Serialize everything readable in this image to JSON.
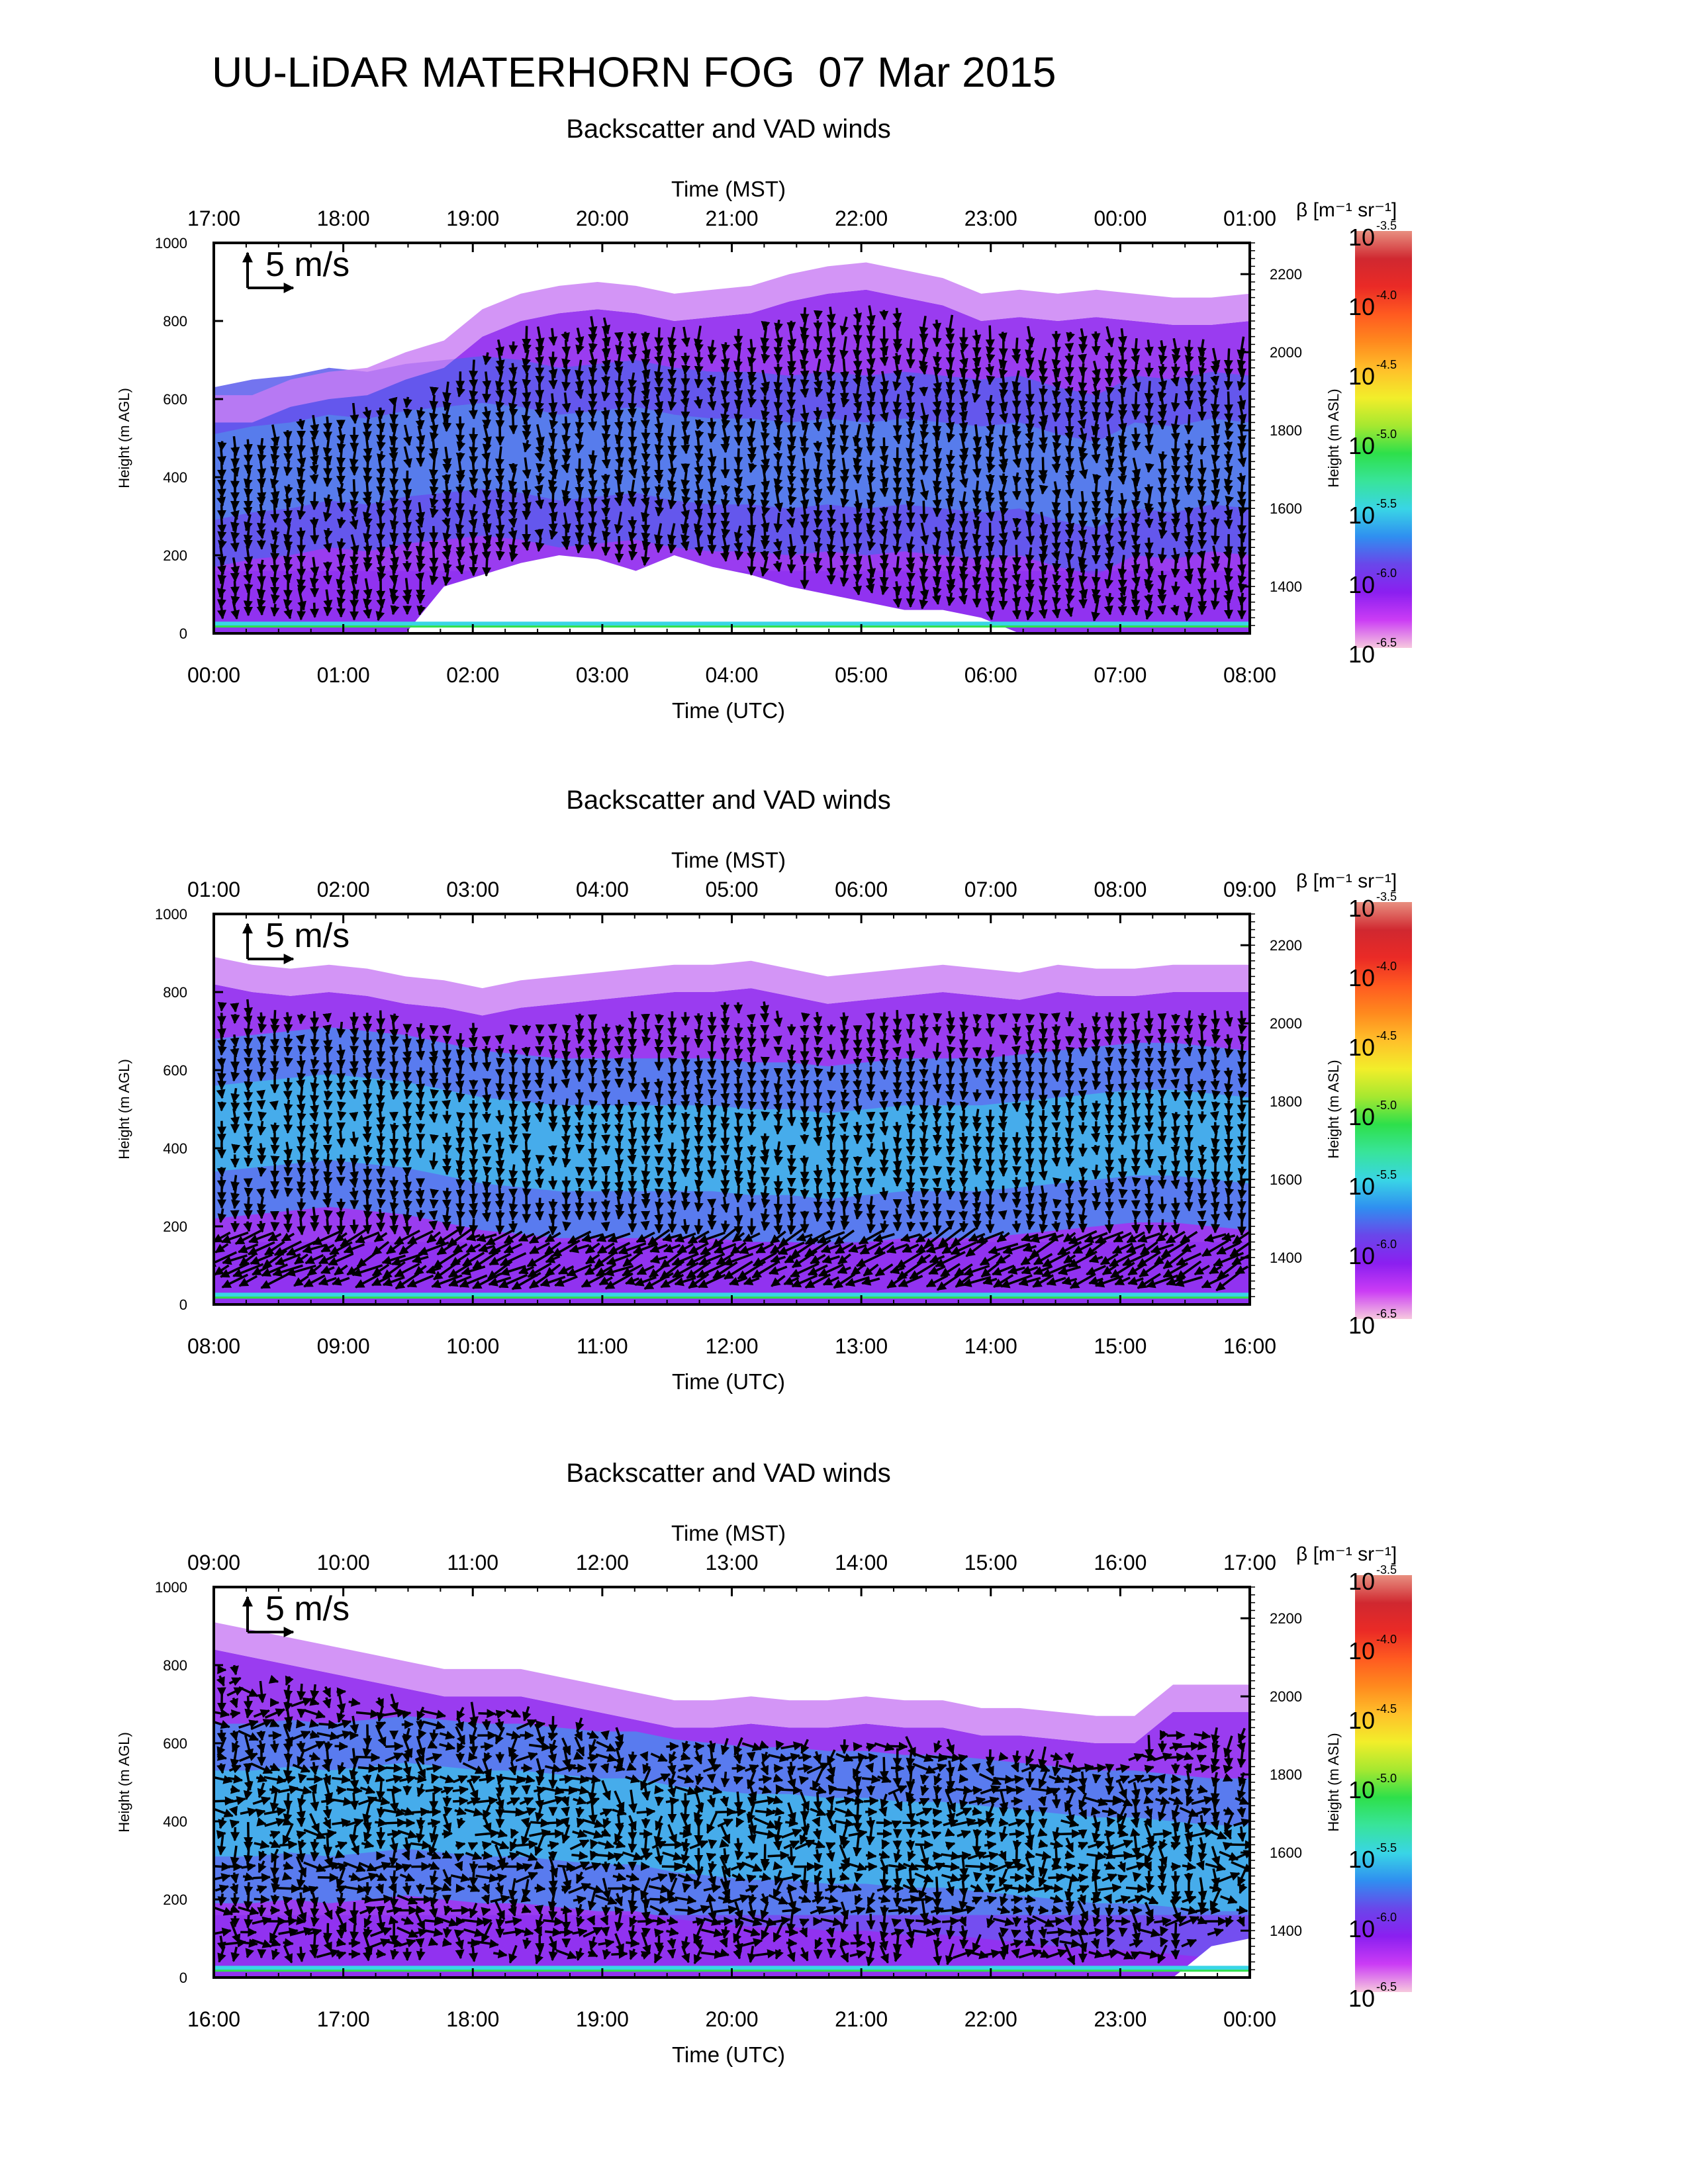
{
  "page": {
    "title": "UU-LiDAR MATERHORN FOG  07 Mar 2015"
  },
  "scale_arrow_label": "5 m/s",
  "colorbar": {
    "title": "β [m⁻¹ sr⁻¹]",
    "ticks": [
      {
        "base": "10",
        "exp": "-3.5",
        "value": -3.5
      },
      {
        "base": "10",
        "exp": "-4.0",
        "value": -4.0
      },
      {
        "base": "10",
        "exp": "-4.5",
        "value": -4.5
      },
      {
        "base": "10",
        "exp": "-5.0",
        "value": -5.0
      },
      {
        "base": "10",
        "exp": "-5.5",
        "value": -5.5
      },
      {
        "base": "10",
        "exp": "-6.0",
        "value": -6.0
      },
      {
        "base": "10",
        "exp": "-6.5",
        "value": -6.5
      }
    ],
    "colors": [
      "#f6c9de",
      "#cb3cf5",
      "#8b1ff0",
      "#6a46ea",
      "#2f8ff0",
      "#39d5e6",
      "#38e49a",
      "#2ee04a",
      "#a6e830",
      "#f2ee2a",
      "#ffc02a",
      "#ff8a1e",
      "#ff5a20",
      "#ea2a26",
      "#d02830",
      "#e88f80"
    ]
  },
  "chart_data": [
    {
      "type": "heatmap",
      "title": "Backscatter and VAD winds",
      "xlabel_bottom": "Time (UTC)",
      "xlabel_top": "Time (MST)",
      "ylabel_left": "Height (m AGL)",
      "ylabel_right": "Height (m ASL)",
      "x_ticks_bottom": [
        "00:00",
        "01:00",
        "02:00",
        "03:00",
        "04:00",
        "05:00",
        "06:00",
        "07:00",
        "08:00"
      ],
      "x_ticks_top": [
        "17:00",
        "18:00",
        "19:00",
        "20:00",
        "21:00",
        "22:00",
        "23:00",
        "00:00",
        "01:00"
      ],
      "y_ticks_left": [
        0,
        200,
        400,
        600,
        800,
        1000
      ],
      "y_ticks_right": [
        1400,
        1600,
        1800,
        2000,
        2200
      ],
      "ylim": [
        0,
        1000
      ],
      "bl_top": [
        540,
        540,
        580,
        600,
        610,
        650,
        680,
        760,
        800,
        820,
        830,
        820,
        800,
        810,
        820,
        850,
        870,
        880,
        860,
        840,
        800,
        810,
        800,
        810,
        800,
        790,
        790,
        800
      ],
      "layer": [
        400,
        420,
        430,
        450,
        440,
        460,
        470,
        480,
        470,
        450,
        460,
        470,
        450,
        440,
        440,
        430,
        440,
        430,
        440,
        430,
        420,
        430,
        400,
        380,
        430,
        420,
        440,
        430
      ],
      "clear_bottom": [
        0,
        0,
        0,
        0,
        0,
        0,
        120,
        150,
        180,
        200,
        190,
        160,
        200,
        170,
        150,
        120,
        100,
        80,
        60,
        60,
        40,
        0,
        0,
        0,
        0,
        0,
        0,
        0
      ]
    },
    {
      "type": "heatmap",
      "title": "Backscatter and VAD winds",
      "xlabel_bottom": "Time (UTC)",
      "xlabel_top": "Time (MST)",
      "ylabel_left": "Height (m AGL)",
      "ylabel_right": "Height (m ASL)",
      "x_ticks_bottom": [
        "08:00",
        "09:00",
        "10:00",
        "11:00",
        "12:00",
        "13:00",
        "14:00",
        "15:00",
        "16:00"
      ],
      "x_ticks_top": [
        "01:00",
        "02:00",
        "03:00",
        "04:00",
        "05:00",
        "06:00",
        "07:00",
        "08:00",
        "09:00"
      ],
      "y_ticks_left": [
        0,
        200,
        400,
        600,
        800,
        1000
      ],
      "y_ticks_right": [
        1400,
        1600,
        1800,
        2000,
        2200
      ],
      "ylim": [
        0,
        1000
      ],
      "bl_top": [
        820,
        800,
        790,
        800,
        790,
        770,
        760,
        740,
        760,
        770,
        780,
        790,
        800,
        800,
        810,
        790,
        770,
        780,
        790,
        800,
        790,
        780,
        800,
        790,
        790,
        800,
        800,
        800
      ],
      "layer": [
        450,
        460,
        470,
        480,
        470,
        460,
        440,
        420,
        410,
        400,
        400,
        400,
        400,
        400,
        390,
        390,
        380,
        390,
        400,
        400,
        400,
        410,
        420,
        430,
        440,
        440,
        430,
        420
      ],
      "clear_bottom": [
        0,
        0,
        0,
        0,
        0,
        0,
        0,
        0,
        0,
        0,
        0,
        0,
        0,
        0,
        0,
        0,
        0,
        0,
        0,
        0,
        0,
        0,
        0,
        0,
        0,
        0,
        0,
        0
      ]
    },
    {
      "type": "heatmap",
      "title": "Backscatter and VAD winds",
      "xlabel_bottom": "Time (UTC)",
      "xlabel_top": "Time (MST)",
      "ylabel_left": "Height (m AGL)",
      "ylabel_right": "Height (m ASL)",
      "x_ticks_bottom": [
        "16:00",
        "17:00",
        "18:00",
        "19:00",
        "20:00",
        "21:00",
        "22:00",
        "23:00",
        "00:00"
      ],
      "x_ticks_top": [
        "09:00",
        "10:00",
        "11:00",
        "12:00",
        "13:00",
        "14:00",
        "15:00",
        "16:00",
        "17:00"
      ],
      "y_ticks_left": [
        0,
        200,
        400,
        600,
        800,
        1000
      ],
      "y_ticks_right": [
        1400,
        1600,
        1800,
        2000,
        2200
      ],
      "ylim": [
        0,
        1000
      ],
      "bl_top": [
        840,
        820,
        800,
        780,
        760,
        740,
        720,
        720,
        720,
        700,
        680,
        660,
        640,
        640,
        650,
        640,
        640,
        650,
        640,
        640,
        620,
        620,
        610,
        600,
        600,
        680,
        680,
        680
      ],
      "layer": [
        420,
        420,
        430,
        420,
        430,
        440,
        430,
        420,
        420,
        410,
        400,
        400,
        380,
        370,
        360,
        360,
        350,
        350,
        340,
        340,
        330,
        320,
        310,
        300,
        300,
        290,
        280,
        280
      ],
      "clear_bottom": [
        0,
        0,
        0,
        0,
        0,
        0,
        0,
        0,
        0,
        0,
        0,
        0,
        0,
        0,
        0,
        0,
        0,
        0,
        0,
        0,
        0,
        0,
        0,
        0,
        0,
        0,
        80,
        100
      ]
    }
  ]
}
